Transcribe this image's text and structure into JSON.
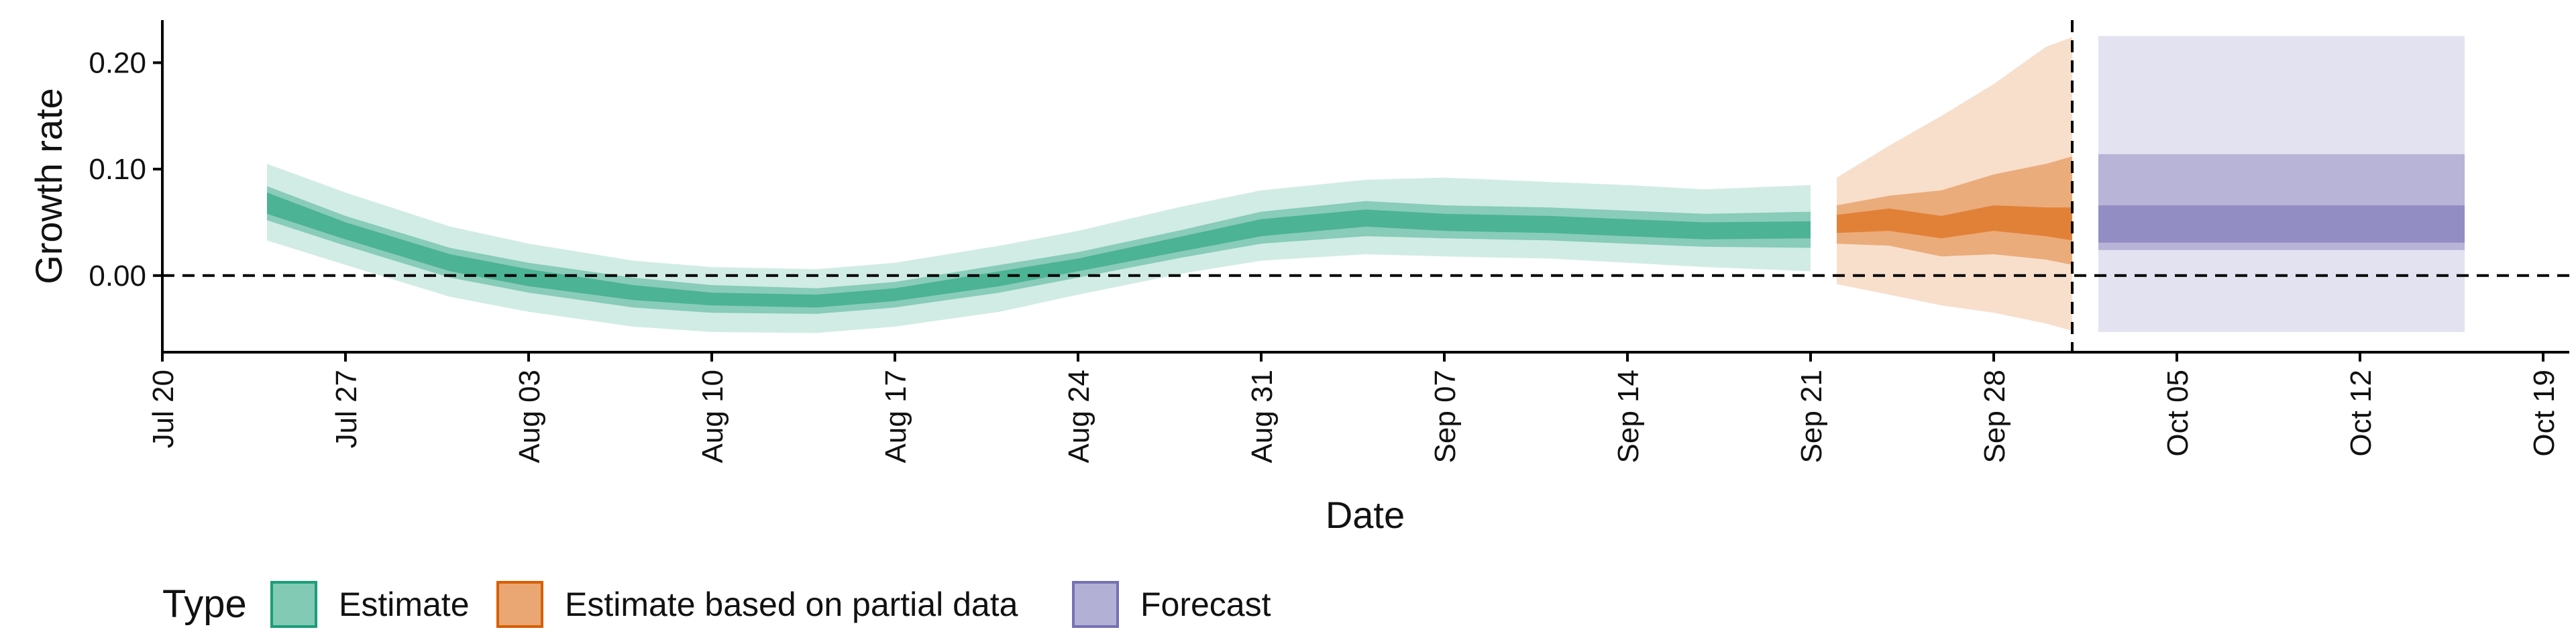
{
  "chart_data": {
    "type": "area",
    "xlabel": "Date",
    "ylabel": "Growth rate",
    "x_domain": [
      "2020-07-20",
      "2020-10-20"
    ],
    "ylim": [
      -0.072,
      0.24
    ],
    "yticks": [
      0.0,
      0.1,
      0.2
    ],
    "ytick_labels": [
      "0.00",
      "0.10",
      "0.20"
    ],
    "xticks": [
      "2020-07-20",
      "2020-07-27",
      "2020-08-03",
      "2020-08-10",
      "2020-08-17",
      "2020-08-24",
      "2020-08-31",
      "2020-09-07",
      "2020-09-14",
      "2020-09-21",
      "2020-09-28",
      "2020-10-05",
      "2020-10-12",
      "2020-10-19"
    ],
    "xtick_labels": [
      "Jul 20",
      "Jul 27",
      "Aug 03",
      "Aug 10",
      "Aug 17",
      "Aug 24",
      "Aug 31",
      "Sep 07",
      "Sep 14",
      "Sep 21",
      "Sep 28",
      "Oct 05",
      "Oct 12",
      "Oct 19"
    ],
    "hline": 0.0,
    "vline": "2020-10-01",
    "grid": false,
    "legend": {
      "title": "Type",
      "position": "bottom",
      "entries": [
        "Estimate",
        "Estimate based on partial data",
        "Forecast"
      ]
    },
    "series": [
      {
        "name": "Estimate",
        "color": "#1B9E77",
        "x": [
          "2020-07-24",
          "2020-07-27",
          "2020-07-31",
          "2020-08-03",
          "2020-08-07",
          "2020-08-10",
          "2020-08-14",
          "2020-08-17",
          "2020-08-21",
          "2020-08-24",
          "2020-08-28",
          "2020-08-31",
          "2020-09-04",
          "2020-09-07",
          "2020-09-11",
          "2020-09-14",
          "2020-09-17",
          "2020-09-21"
        ],
        "median": [
          0.068,
          0.042,
          0.012,
          -0.002,
          -0.016,
          -0.022,
          -0.024,
          -0.018,
          -0.003,
          0.01,
          0.03,
          0.045,
          0.054,
          0.05,
          0.048,
          0.045,
          0.042,
          0.043
        ],
        "lower_20": [
          0.058,
          0.034,
          0.004,
          -0.01,
          -0.023,
          -0.028,
          -0.03,
          -0.024,
          -0.01,
          0.004,
          0.023,
          0.037,
          0.046,
          0.042,
          0.04,
          0.037,
          0.034,
          0.035
        ],
        "upper_20": [
          0.078,
          0.05,
          0.02,
          0.006,
          -0.009,
          -0.016,
          -0.018,
          -0.012,
          0.004,
          0.016,
          0.037,
          0.053,
          0.062,
          0.058,
          0.056,
          0.053,
          0.05,
          0.051
        ],
        "lower_50": [
          0.052,
          0.028,
          -0.002,
          -0.016,
          -0.03,
          -0.035,
          -0.036,
          -0.03,
          -0.016,
          -0.002,
          0.017,
          0.03,
          0.037,
          0.035,
          0.033,
          0.03,
          0.027,
          0.026
        ],
        "upper_50": [
          0.084,
          0.056,
          0.026,
          0.012,
          -0.002,
          -0.009,
          -0.012,
          -0.006,
          0.01,
          0.022,
          0.043,
          0.06,
          0.07,
          0.066,
          0.064,
          0.061,
          0.058,
          0.06
        ],
        "lower_90": [
          0.033,
          0.01,
          -0.02,
          -0.034,
          -0.048,
          -0.053,
          -0.054,
          -0.048,
          -0.034,
          -0.018,
          0.002,
          0.014,
          0.02,
          0.018,
          0.016,
          0.012,
          0.008,
          0.004
        ],
        "upper_90": [
          0.105,
          0.078,
          0.046,
          0.03,
          0.014,
          0.008,
          0.006,
          0.012,
          0.028,
          0.042,
          0.065,
          0.08,
          0.09,
          0.092,
          0.088,
          0.085,
          0.081,
          0.085
        ]
      },
      {
        "name": "Estimate based on partial data",
        "color": "#D95F02",
        "x": [
          "2020-09-22",
          "2020-09-24",
          "2020-09-26",
          "2020-09-28",
          "2020-09-30",
          "2020-10-01"
        ],
        "median": [
          0.048,
          0.052,
          0.045,
          0.054,
          0.05,
          0.048
        ],
        "lower_20": [
          0.04,
          0.042,
          0.035,
          0.042,
          0.037,
          0.033
        ],
        "upper_20": [
          0.057,
          0.063,
          0.056,
          0.066,
          0.064,
          0.064
        ],
        "lower_50": [
          0.03,
          0.028,
          0.018,
          0.02,
          0.015,
          0.01
        ],
        "upper_50": [
          0.066,
          0.075,
          0.08,
          0.095,
          0.105,
          0.112
        ],
        "lower_90": [
          -0.008,
          -0.018,
          -0.028,
          -0.035,
          -0.045,
          -0.052
        ],
        "upper_90": [
          0.092,
          0.122,
          0.15,
          0.18,
          0.215,
          0.224
        ]
      },
      {
        "name": "Forecast",
        "color": "#7570B3",
        "x": [
          "2020-10-02",
          "2020-10-16"
        ],
        "median": [
          0.05,
          0.05
        ],
        "lower_20": [
          0.031,
          0.031
        ],
        "upper_20": [
          0.066,
          0.066
        ],
        "lower_50": [
          0.024,
          0.024
        ],
        "upper_50": [
          0.114,
          0.114
        ],
        "lower_90": [
          -0.053,
          -0.053
        ],
        "upper_90": [
          0.225,
          0.225
        ]
      }
    ]
  }
}
